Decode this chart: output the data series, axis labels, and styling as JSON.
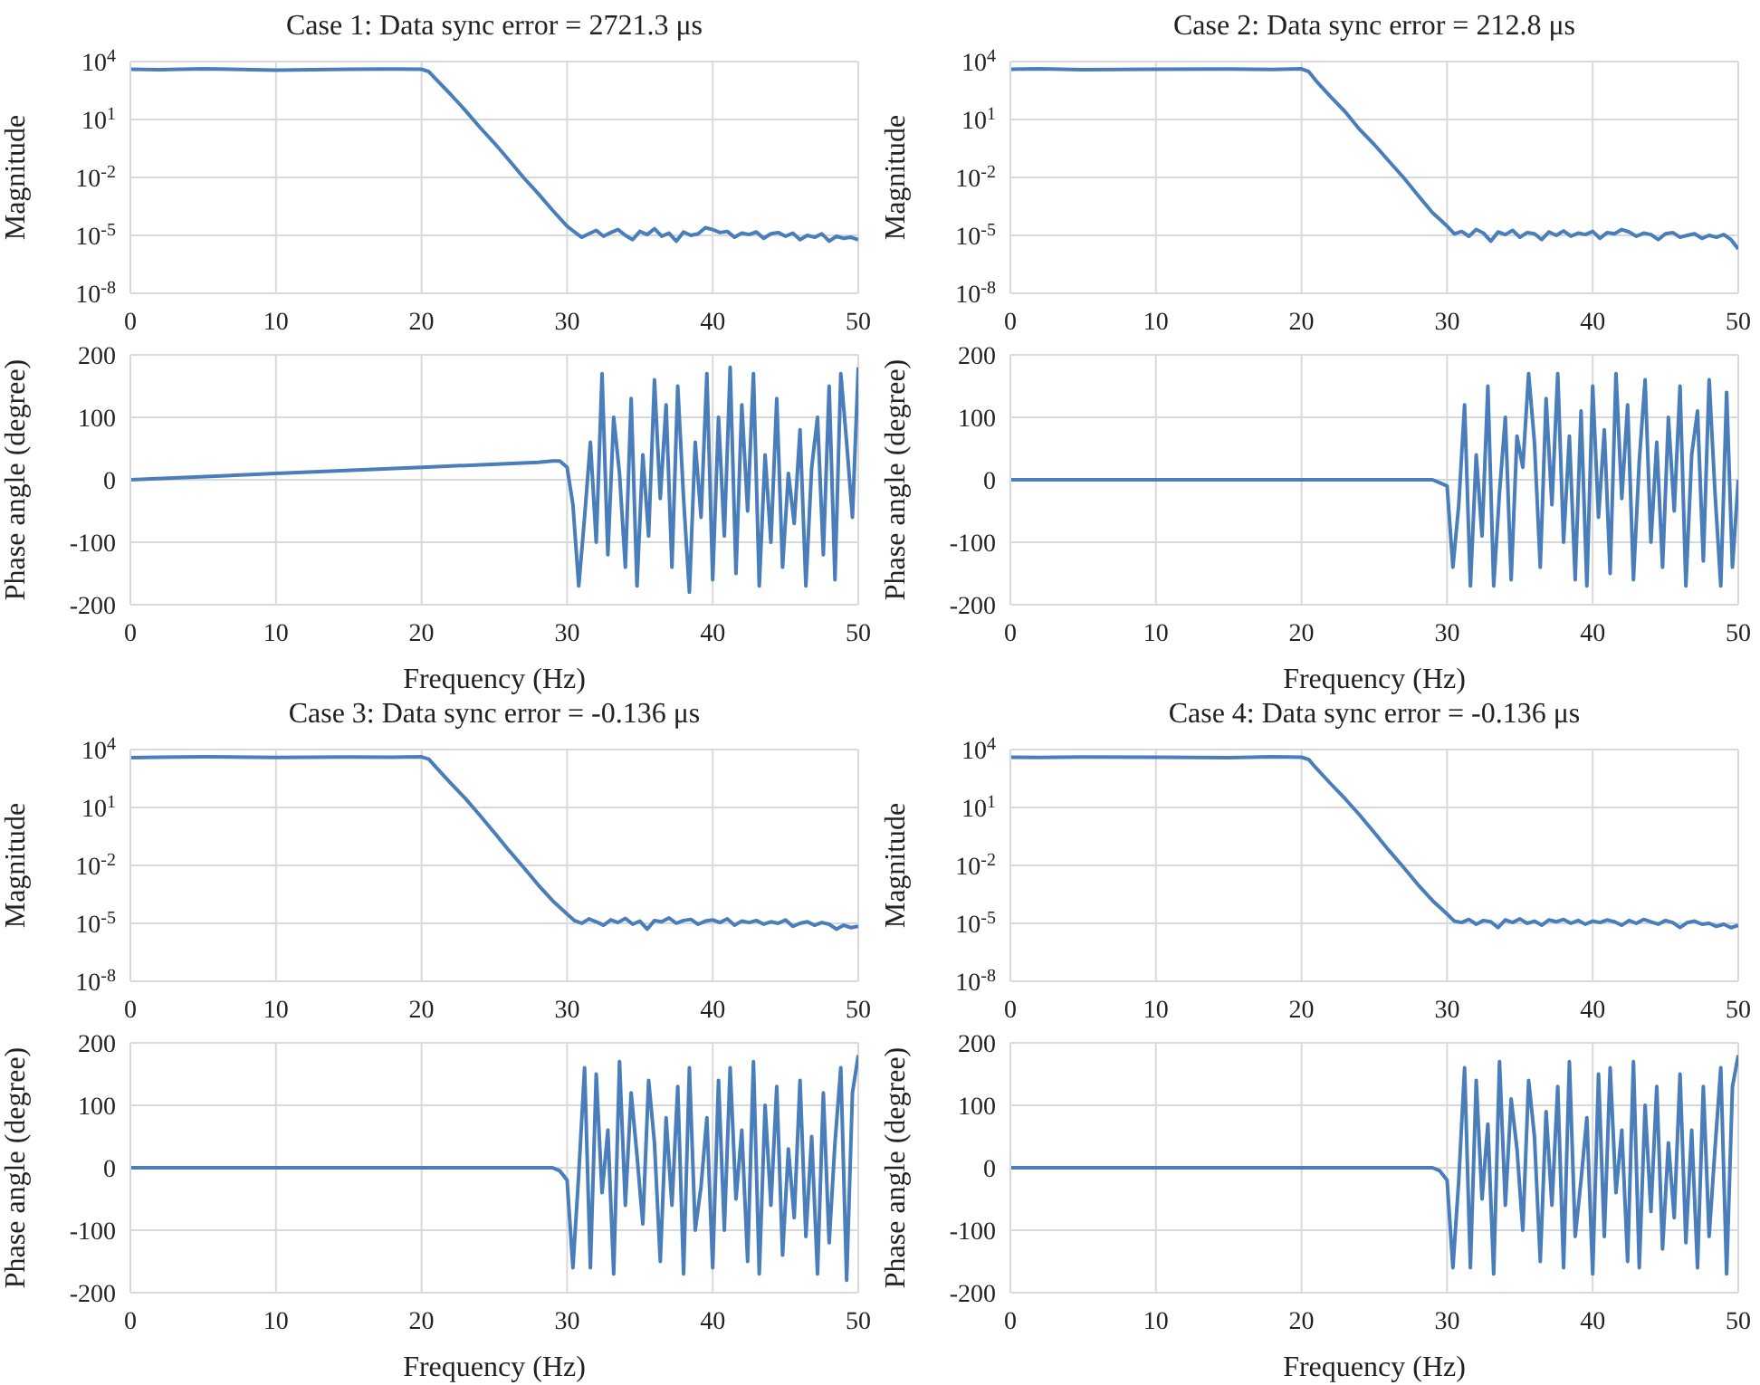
{
  "chart_data": [
    {
      "type": "line",
      "title": "Case 1: Data sync error = 2721.3 μs",
      "ylabel": "Magnitude",
      "log": "y",
      "grid": true,
      "xlim": [
        0,
        50
      ],
      "xticks": [
        0,
        10,
        20,
        30,
        40,
        50
      ],
      "ylim": [
        1e-08,
        10000
      ],
      "yticks": [
        {
          "value": 1e-08,
          "label": "10$^{-8}$"
        },
        {
          "value": 1e-05,
          "label": "10$^{-5}$"
        },
        {
          "value": 0.01,
          "label": "10$^{-2}$"
        },
        {
          "value": 10,
          "label": "10$^{1}$"
        },
        {
          "value": 10000,
          "label": "10$^{4}$"
        }
      ],
      "series": [
        {
          "color": "#4a7ebb",
          "x": [
            0,
            2,
            5,
            10,
            15,
            18,
            20,
            20.5,
            21,
            22,
            23,
            24,
            25,
            26,
            27,
            28,
            29,
            30,
            30.5,
            31,
            31.5,
            32,
            32.5,
            33,
            33.5,
            34,
            34.5,
            35,
            35.5,
            36,
            36.5,
            37,
            37.5,
            38,
            38.5,
            39,
            39.5,
            40,
            40.5,
            41,
            41.5,
            42,
            42.5,
            43,
            43.5,
            44,
            44.5,
            45,
            45.5,
            46,
            46.5,
            47,
            47.5,
            48,
            48.5,
            49,
            49.5,
            50
          ],
          "values": [
            4000,
            3800,
            4200,
            3600,
            4000,
            4100,
            4000,
            3000,
            1200,
            200,
            30,
            4,
            0.6,
            0.08,
            0.01,
            0.0015,
            0.0002,
            3e-05,
            1.5e-05,
            8e-06,
            1.2e-05,
            1.8e-05,
            9e-06,
            1.4e-05,
            2e-05,
            1e-05,
            6e-06,
            1.6e-05,
            1.1e-05,
            2.2e-05,
            9e-06,
            1.3e-05,
            5e-06,
            1.5e-05,
            1e-05,
            1.2e-05,
            2.5e-05,
            2e-05,
            1.4e-05,
            1.6e-05,
            8e-06,
            1.3e-05,
            1.1e-05,
            1.5e-05,
            7e-06,
            1.2e-05,
            1.4e-05,
            9e-06,
            1.3e-05,
            6e-06,
            1e-05,
            8e-06,
            1.2e-05,
            5e-06,
            9e-06,
            7e-06,
            8e-06,
            6e-06
          ]
        }
      ]
    },
    {
      "type": "line",
      "xlabel": "Frequency (Hz)",
      "ylabel": "Phase angle (degree)",
      "grid": true,
      "xlim": [
        0,
        50
      ],
      "xticks": [
        0,
        10,
        20,
        30,
        40,
        50
      ],
      "ylim": [
        -200,
        200
      ],
      "yticks": [
        -200,
        -100,
        0,
        100,
        200
      ],
      "series": [
        {
          "color": "#4a7ebb",
          "x": [
            0,
            10,
            20,
            28,
            29,
            29.5,
            30,
            30.4,
            30.8,
            31.2,
            31.6,
            32,
            32.4,
            32.8,
            33.2,
            33.6,
            34,
            34.4,
            34.8,
            35.2,
            35.6,
            36,
            36.4,
            36.8,
            37.2,
            37.6,
            38,
            38.4,
            38.8,
            39.2,
            39.6,
            40,
            40.4,
            40.8,
            41.2,
            41.6,
            42,
            42.4,
            42.8,
            43.2,
            43.6,
            44,
            44.4,
            44.8,
            45.2,
            45.6,
            46,
            46.4,
            46.8,
            47.2,
            47.6,
            48,
            48.4,
            48.8,
            49.2,
            49.6,
            50
          ],
          "values": [
            0,
            10,
            20,
            28,
            30,
            30,
            20,
            -40,
            -170,
            -60,
            60,
            -100,
            170,
            -120,
            100,
            10,
            -140,
            130,
            -170,
            40,
            -90,
            160,
            -30,
            120,
            -140,
            150,
            -30,
            -180,
            60,
            -60,
            170,
            -160,
            100,
            -90,
            180,
            -150,
            120,
            -50,
            170,
            -170,
            40,
            -100,
            130,
            -140,
            10,
            -70,
            80,
            -170,
            20,
            100,
            -120,
            150,
            -160,
            170,
            60,
            -60,
            180
          ]
        }
      ]
    },
    {
      "type": "line",
      "title": "Case 2: Data sync error = 212.8 μs",
      "ylabel": "Magnitude",
      "log": "y",
      "grid": true,
      "xlim": [
        0,
        50
      ],
      "xticks": [
        0,
        10,
        20,
        30,
        40,
        50
      ],
      "ylim": [
        1e-08,
        10000
      ],
      "yticks": [
        {
          "value": 1e-08,
          "label": "10$^{-8}$"
        },
        {
          "value": 1e-05,
          "label": "10$^{-5}$"
        },
        {
          "value": 0.01,
          "label": "10$^{-2}$"
        },
        {
          "value": 10,
          "label": "10$^{1}$"
        },
        {
          "value": 10000,
          "label": "10$^{4}$"
        }
      ],
      "series": [
        {
          "color": "#4a7ebb",
          "x": [
            0,
            2,
            5,
            10,
            15,
            18,
            20,
            20.5,
            21,
            22,
            23,
            24,
            25,
            26,
            27,
            28,
            29,
            30,
            30.5,
            31,
            31.5,
            32,
            32.5,
            33,
            33.5,
            34,
            34.5,
            35,
            35.5,
            36,
            36.5,
            37,
            37.5,
            38,
            38.5,
            39,
            39.5,
            40,
            40.5,
            41,
            41.5,
            42,
            42.5,
            43,
            43.5,
            44,
            44.5,
            45,
            45.5,
            46,
            46.5,
            47,
            47.5,
            48,
            48.5,
            49,
            49.5,
            50
          ],
          "values": [
            4000,
            4200,
            3800,
            4000,
            4100,
            3900,
            4200,
            3000,
            1000,
            150,
            25,
            3,
            0.5,
            0.07,
            0.01,
            0.0012,
            0.00015,
            3e-05,
            1.2e-05,
            1.6e-05,
            9e-06,
            2e-05,
            1.3e-05,
            5e-06,
            1.5e-05,
            1.1e-05,
            1.8e-05,
            8e-06,
            1.4e-05,
            1.2e-05,
            6e-06,
            1.5e-05,
            1e-05,
            1.7e-05,
            9e-06,
            1.3e-05,
            1.1e-05,
            1.6e-05,
            7e-06,
            1.4e-05,
            1.2e-05,
            2e-05,
            1.5e-05,
            9e-06,
            1.3e-05,
            1.1e-05,
            6e-06,
            1.2e-05,
            1.4e-05,
            8e-06,
            1e-05,
            1.2e-05,
            7e-06,
            1e-05,
            8e-06,
            1.1e-05,
            6e-06,
            2e-06
          ]
        }
      ]
    },
    {
      "type": "line",
      "xlabel": "Frequency (Hz)",
      "ylabel": "Phase angle (degree)",
      "grid": true,
      "xlim": [
        0,
        50
      ],
      "xticks": [
        0,
        10,
        20,
        30,
        40,
        50
      ],
      "ylim": [
        -200,
        200
      ],
      "yticks": [
        -200,
        -100,
        0,
        100,
        200
      ],
      "series": [
        {
          "color": "#4a7ebb",
          "x": [
            0,
            10,
            20,
            28,
            29,
            29.5,
            30,
            30.4,
            30.8,
            31.2,
            31.6,
            32,
            32.4,
            32.8,
            33.2,
            33.6,
            34,
            34.4,
            34.8,
            35.2,
            35.6,
            36,
            36.4,
            36.8,
            37.2,
            37.6,
            38,
            38.4,
            38.8,
            39.2,
            39.6,
            40,
            40.4,
            40.8,
            41.2,
            41.6,
            42,
            42.4,
            42.8,
            43.2,
            43.6,
            44,
            44.4,
            44.8,
            45.2,
            45.6,
            46,
            46.4,
            46.8,
            47.2,
            47.6,
            48,
            48.4,
            48.8,
            49.2,
            49.6,
            50
          ],
          "values": [
            0,
            0,
            0,
            0,
            0,
            -5,
            -10,
            -140,
            -40,
            120,
            -170,
            40,
            -90,
            150,
            -170,
            -20,
            100,
            -160,
            70,
            20,
            170,
            60,
            -140,
            130,
            -40,
            170,
            -100,
            70,
            -160,
            110,
            -170,
            150,
            -60,
            80,
            -150,
            170,
            -30,
            120,
            -160,
            30,
            160,
            -100,
            60,
            -140,
            100,
            -50,
            150,
            -170,
            40,
            110,
            -130,
            160,
            -20,
            -170,
            140,
            -140,
            0
          ]
        }
      ]
    },
    {
      "type": "line",
      "title": "Case 3: Data sync error = -0.136 μs",
      "ylabel": "Magnitude",
      "log": "y",
      "grid": true,
      "xlim": [
        0,
        50
      ],
      "xticks": [
        0,
        10,
        20,
        30,
        40,
        50
      ],
      "ylim": [
        1e-08,
        10000
      ],
      "yticks": [
        {
          "value": 1e-08,
          "label": "10$^{-8}$"
        },
        {
          "value": 1e-05,
          "label": "10$^{-5}$"
        },
        {
          "value": 0.01,
          "label": "10$^{-2}$"
        },
        {
          "value": 10,
          "label": "10$^{1}$"
        },
        {
          "value": 10000,
          "label": "10$^{4}$"
        }
      ],
      "series": [
        {
          "color": "#4a7ebb",
          "x": [
            0,
            2,
            5,
            10,
            15,
            18,
            20,
            20.5,
            21,
            22,
            23,
            24,
            25,
            26,
            27,
            28,
            29,
            30,
            30.5,
            31,
            31.5,
            32,
            32.5,
            33,
            33.5,
            34,
            34.5,
            35,
            35.5,
            36,
            36.5,
            37,
            37.5,
            38,
            38.5,
            39,
            39.5,
            40,
            40.5,
            41,
            41.5,
            42,
            42.5,
            43,
            43.5,
            44,
            44.5,
            45,
            45.5,
            46,
            46.5,
            47,
            47.5,
            48,
            48.5,
            49,
            49.5,
            50
          ],
          "values": [
            3800,
            4000,
            4200,
            3900,
            4100,
            4000,
            4200,
            3200,
            1200,
            180,
            30,
            4,
            0.5,
            0.06,
            0.008,
            0.001,
            0.00015,
            3e-05,
            1.4e-05,
            1e-05,
            1.7e-05,
            1.2e-05,
            8e-06,
            1.5e-05,
            1.1e-05,
            1.8e-05,
            9e-06,
            1.3e-05,
            5e-06,
            1.4e-05,
            1.2e-05,
            1.9e-05,
            1e-05,
            1.4e-05,
            1.6e-05,
            9e-06,
            1.3e-05,
            1.5e-05,
            1.1e-05,
            1.7e-05,
            8e-06,
            1.3e-05,
            1.1e-05,
            1.4e-05,
            9e-06,
            1.2e-05,
            1e-05,
            1.5e-05,
            7e-06,
            1e-05,
            1.2e-05,
            8e-06,
            1.1e-05,
            9e-06,
            5e-06,
            8e-06,
            6e-06,
            7e-06
          ]
        }
      ]
    },
    {
      "type": "line",
      "xlabel": "Frequency (Hz)",
      "ylabel": "Phase angle (degree)",
      "grid": true,
      "xlim": [
        0,
        50
      ],
      "xticks": [
        0,
        10,
        20,
        30,
        40,
        50
      ],
      "ylim": [
        -200,
        200
      ],
      "yticks": [
        -200,
        -100,
        0,
        100,
        200
      ],
      "series": [
        {
          "color": "#4a7ebb",
          "x": [
            0,
            10,
            20,
            28,
            29,
            29.5,
            30,
            30.4,
            30.8,
            31.2,
            31.6,
            32,
            32.4,
            32.8,
            33.2,
            33.6,
            34,
            34.4,
            34.8,
            35.2,
            35.6,
            36,
            36.4,
            36.8,
            37.2,
            37.6,
            38,
            38.4,
            38.8,
            39.2,
            39.6,
            40,
            40.4,
            40.8,
            41.2,
            41.6,
            42,
            42.4,
            42.8,
            43.2,
            43.6,
            44,
            44.4,
            44.8,
            45.2,
            45.6,
            46,
            46.4,
            46.8,
            47.2,
            47.6,
            48,
            48.4,
            48.8,
            49.2,
            49.6,
            50
          ],
          "values": [
            0,
            0,
            0,
            0,
            0,
            -5,
            -20,
            -160,
            -10,
            160,
            -160,
            150,
            -40,
            60,
            -170,
            170,
            -60,
            120,
            20,
            -90,
            140,
            40,
            -150,
            80,
            -60,
            130,
            -170,
            160,
            -100,
            -30,
            80,
            -160,
            140,
            -100,
            160,
            -50,
            60,
            -150,
            170,
            -170,
            100,
            -60,
            130,
            -140,
            30,
            -80,
            140,
            -110,
            50,
            -170,
            120,
            -120,
            40,
            160,
            -180,
            120,
            180
          ]
        }
      ]
    },
    {
      "type": "line",
      "title": "Case 4: Data sync error = -0.136 μs",
      "ylabel": "Magnitude",
      "log": "y",
      "grid": true,
      "xlim": [
        0,
        50
      ],
      "xticks": [
        0,
        10,
        20,
        30,
        40,
        50
      ],
      "ylim": [
        1e-08,
        10000
      ],
      "yticks": [
        {
          "value": 1e-08,
          "label": "10$^{-8}$"
        },
        {
          "value": 1e-05,
          "label": "10$^{-5}$"
        },
        {
          "value": 0.01,
          "label": "10$^{-2}$"
        },
        {
          "value": 10,
          "label": "10$^{1}$"
        },
        {
          "value": 10000,
          "label": "10$^{4}$"
        }
      ],
      "series": [
        {
          "color": "#4a7ebb",
          "x": [
            0,
            2,
            5,
            10,
            15,
            18,
            20,
            20.5,
            21,
            22,
            23,
            24,
            25,
            26,
            27,
            28,
            29,
            30,
            30.5,
            31,
            31.5,
            32,
            32.5,
            33,
            33.5,
            34,
            34.5,
            35,
            35.5,
            36,
            36.5,
            37,
            37.5,
            38,
            38.5,
            39,
            39.5,
            40,
            40.5,
            41,
            41.5,
            42,
            42.5,
            43,
            43.5,
            44,
            44.5,
            45,
            45.5,
            46,
            46.5,
            47,
            47.5,
            48,
            48.5,
            49,
            49.5,
            50
          ],
          "values": [
            4000,
            3900,
            4100,
            4000,
            3800,
            4200,
            4000,
            3000,
            1100,
            170,
            28,
            4,
            0.5,
            0.06,
            0.008,
            0.001,
            0.00015,
            3e-05,
            1.3e-05,
            1.1e-05,
            1.6e-05,
            9e-06,
            1.4e-05,
            1.2e-05,
            6e-06,
            1.5e-05,
            1.1e-05,
            1.7e-05,
            1e-05,
            1.3e-05,
            8e-06,
            1.5e-05,
            1.2e-05,
            1.6e-05,
            1e-05,
            1.4e-05,
            9e-06,
            1.3e-05,
            1.1e-05,
            1.5e-05,
            1.2e-05,
            8e-06,
            1.4e-05,
            1e-05,
            1.6e-05,
            1.2e-05,
            9e-06,
            1.4e-05,
            1.1e-05,
            6e-06,
            1.1e-05,
            1.3e-05,
            9e-06,
            1e-05,
            7e-06,
            9e-06,
            6e-06,
            8e-06
          ]
        }
      ]
    },
    {
      "type": "line",
      "xlabel": "Frequency (Hz)",
      "ylabel": "Phase angle (degree)",
      "grid": true,
      "xlim": [
        0,
        50
      ],
      "xticks": [
        0,
        10,
        20,
        30,
        40,
        50
      ],
      "ylim": [
        -200,
        200
      ],
      "yticks": [
        -200,
        -100,
        0,
        100,
        200
      ],
      "series": [
        {
          "color": "#4a7ebb",
          "x": [
            0,
            10,
            20,
            28,
            29,
            29.5,
            30,
            30.4,
            30.8,
            31.2,
            31.6,
            32,
            32.4,
            32.8,
            33.2,
            33.6,
            34,
            34.4,
            34.8,
            35.2,
            35.6,
            36,
            36.4,
            36.8,
            37.2,
            37.6,
            38,
            38.4,
            38.8,
            39.2,
            39.6,
            40,
            40.4,
            40.8,
            41.2,
            41.6,
            42,
            42.4,
            42.8,
            43.2,
            43.6,
            44,
            44.4,
            44.8,
            45.2,
            45.6,
            46,
            46.4,
            46.8,
            47.2,
            47.6,
            48,
            48.4,
            48.8,
            49.2,
            49.6,
            50
          ],
          "values": [
            0,
            0,
            0,
            0,
            0,
            -5,
            -20,
            -160,
            -20,
            160,
            -160,
            140,
            -50,
            70,
            -170,
            170,
            -60,
            110,
            30,
            -100,
            140,
            50,
            -150,
            90,
            -60,
            130,
            -160,
            170,
            -110,
            -20,
            80,
            -170,
            150,
            -110,
            160,
            -40,
            60,
            -150,
            170,
            -160,
            100,
            -70,
            130,
            -130,
            40,
            -80,
            150,
            -120,
            60,
            -160,
            130,
            -110,
            30,
            160,
            -170,
            130,
            180
          ]
        }
      ]
    }
  ]
}
